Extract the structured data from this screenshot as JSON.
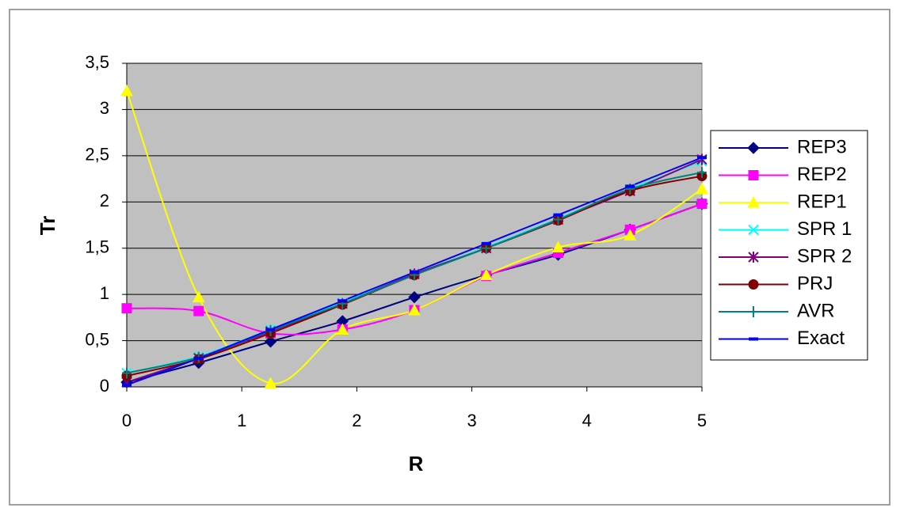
{
  "chart_data": {
    "type": "line",
    "smooth": true,
    "x_label": "R",
    "y_label": "Tr",
    "x": [
      0,
      0.625,
      1.25,
      1.875,
      2.5,
      3.125,
      3.75,
      4.375,
      5
    ],
    "xlim": [
      0,
      5
    ],
    "xticks": [
      0,
      1,
      2,
      3,
      4,
      5
    ],
    "ylim": [
      0,
      3.5
    ],
    "yticks": [
      0,
      {
        "value": 0.5,
        "label": "0,5"
      },
      1,
      {
        "value": 1.5,
        "label": "1,5"
      },
      2,
      {
        "value": 2.5,
        "label": "2,5"
      },
      3,
      {
        "value": 3.5,
        "label": "3,5"
      }
    ],
    "grid": true,
    "legend": "right",
    "plot_background": "#c0c0c0",
    "series": [
      {
        "name": "REP3",
        "color": "#000080",
        "marker": "diamond",
        "values": [
          0.05,
          0.26,
          0.49,
          0.71,
          0.97,
          1.21,
          1.43,
          1.7,
          1.98
        ]
      },
      {
        "name": "REP2",
        "color": "#ff00ff",
        "marker": "square",
        "values": [
          0.85,
          0.82,
          0.58,
          0.62,
          0.83,
          1.2,
          1.45,
          1.7,
          1.98
        ]
      },
      {
        "name": "REP1",
        "color": "#ffff00",
        "marker": "triangle",
        "values": [
          3.2,
          0.97,
          0.04,
          0.62,
          0.83,
          1.21,
          1.51,
          1.64,
          2.14
        ]
      },
      {
        "name": "SPR 1",
        "color": "#00ffff",
        "marker": "x",
        "values": [
          0.15,
          0.33,
          0.62,
          0.91,
          1.22,
          1.51,
          1.82,
          2.14,
          2.44
        ]
      },
      {
        "name": "SPR 2",
        "color": "#800080",
        "marker": "star",
        "values": [
          0.05,
          0.31,
          0.6,
          0.9,
          1.22,
          1.5,
          1.81,
          2.12,
          2.46
        ]
      },
      {
        "name": "PRJ",
        "color": "#800000",
        "marker": "circle",
        "values": [
          0.12,
          0.3,
          0.58,
          0.89,
          1.21,
          1.5,
          1.8,
          2.12,
          2.28
        ]
      },
      {
        "name": "AVR",
        "color": "#008080",
        "marker": "plus",
        "values": [
          0.15,
          0.32,
          0.61,
          0.9,
          1.21,
          1.5,
          1.81,
          2.14,
          2.32
        ]
      },
      {
        "name": "Exact",
        "color": "#0000ff",
        "marker": "dash",
        "values": [
          0.02,
          0.31,
          0.62,
          0.93,
          1.24,
          1.55,
          1.86,
          2.17,
          2.48
        ]
      }
    ]
  }
}
